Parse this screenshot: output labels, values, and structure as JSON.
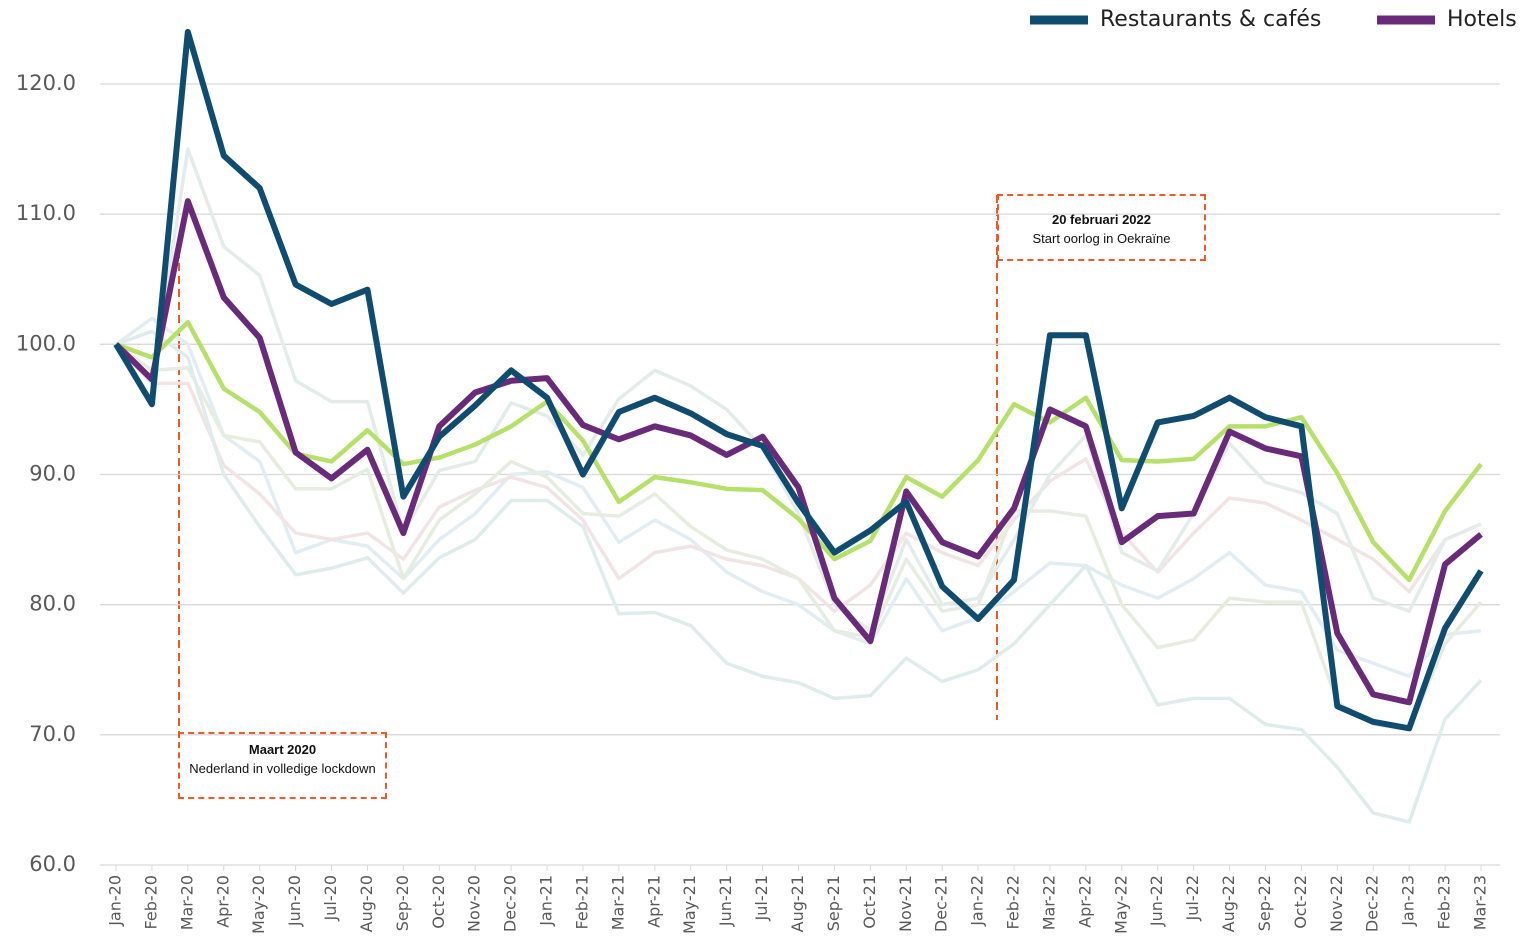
{
  "chart_data": {
    "type": "line",
    "categories": [
      "Jan-20",
      "Feb-20",
      "Mar-20",
      "Apr-20",
      "May-20",
      "Jun-20",
      "Jul-20",
      "Aug-20",
      "Sep-20",
      "Oct-20",
      "Nov-20",
      "Dec-20",
      "Jan-21",
      "Feb-21",
      "Mar-21",
      "Apr-21",
      "May-21",
      "Jun-21",
      "Jul-21",
      "Aug-21",
      "Sep-21",
      "Oct-21",
      "Nov-21",
      "Dec-21",
      "Jan-22",
      "Feb-22",
      "Mar-22",
      "Apr-22",
      "May-22",
      "Jun-22",
      "Jul-22",
      "Aug-22",
      "Sep-22",
      "Oct-22",
      "Nov-22",
      "Dec-22",
      "Jan-23",
      "Feb-23",
      "Mar-23"
    ],
    "series": [
      {
        "name": "Restaurants & cafés",
        "color": "#0f4c70",
        "values": [
          100,
          95.4,
          124.0,
          114.5,
          112.0,
          104.6,
          103.1,
          104.2,
          88.3,
          92.9,
          95.3,
          98.0,
          95.9,
          90.0,
          94.8,
          95.9,
          94.7,
          93.1,
          92.2,
          87.8,
          84.0,
          85.7,
          87.9,
          81.4,
          78.9,
          81.9,
          100.7,
          100.7,
          87.4,
          94.0,
          94.5,
          95.9,
          94.4,
          93.7,
          72.2,
          71.0,
          70.5,
          78.2,
          82.6
        ]
      },
      {
        "name": "Hotels",
        "color": "#6a2a7a",
        "values": [
          100,
          97.3,
          111.0,
          103.6,
          100.5,
          91.7,
          89.7,
          91.9,
          85.5,
          93.7,
          96.3,
          97.2,
          97.4,
          93.8,
          92.7,
          93.7,
          93.0,
          91.5,
          92.9,
          89.0,
          80.5,
          77.2,
          88.7,
          84.8,
          83.7,
          87.4,
          95.0,
          93.7,
          84.8,
          86.8,
          87.0,
          93.3,
          92.0,
          91.4,
          77.8,
          73.1,
          72.5,
          83.1,
          85.4
        ]
      },
      {
        "color": "#b5e06a",
        "values": [
          100,
          99.0,
          101.7,
          96.6,
          94.8,
          91.6,
          91.0,
          93.4,
          90.8,
          91.3,
          92.3,
          93.7,
          95.6,
          92.6,
          87.9,
          89.8,
          89.4,
          88.9,
          88.8,
          86.6,
          83.5,
          84.9,
          89.8,
          88.3,
          91.1,
          95.4,
          94.0,
          95.9,
          91.1,
          91.0,
          91.2,
          93.7,
          93.7,
          94.4,
          90.1,
          84.8,
          81.9,
          87.2,
          90.8
        ]
      },
      {
        "color": "#e0ecec",
        "values": [
          100,
          101,
          99,
          90,
          86,
          82.3,
          82.8,
          83.6,
          80.9,
          83.6,
          85.0,
          88.0,
          88.0,
          86.0,
          79.3,
          79.4,
          78.4,
          75.5,
          74.5,
          74.0,
          72.8,
          73.0,
          75.9,
          74.1,
          75.0,
          77.0,
          80.0,
          83.0,
          77.5,
          72.3,
          72.8,
          72.8,
          70.8,
          70.4,
          67.5,
          64.0,
          63.3,
          71.2,
          74.2
        ]
      },
      {
        "color": "#e4ecea",
        "values": [
          100,
          97,
          115,
          107.5,
          105.3,
          97.2,
          95.6,
          95.6,
          85.6,
          90.3,
          91.0,
          95.5,
          94.5,
          91.5,
          95.8,
          98.0,
          96.8,
          95.0,
          92.0,
          87.0,
          80.0,
          78.0,
          85.0,
          80.0,
          80.5,
          85.0,
          90.0,
          93.0,
          84.0,
          82.6,
          87.0,
          92.4,
          89.4,
          88.6,
          87.0,
          80.5,
          79.5,
          85.0,
          86.2
        ]
      },
      {
        "color": "#e6ede0",
        "values": [
          100,
          98,
          98.2,
          93,
          92.5,
          88.9,
          88.9,
          90.4,
          82.0,
          86.5,
          88.5,
          91.0,
          89.8,
          87.0,
          86.8,
          88.5,
          86.0,
          84.2,
          83.5,
          82.0,
          78.0,
          77.5,
          83.5,
          79.5,
          80.0,
          87.2,
          87.2,
          86.8,
          80.0,
          76.7,
          77.3,
          80.5,
          80.2,
          80.2,
          72.5,
          70.8,
          70.4,
          77.0,
          80.2
        ]
      },
      {
        "color": "#f2e4e4",
        "values": [
          100,
          97,
          97,
          90.7,
          88.5,
          85.5,
          85,
          85.5,
          83.5,
          87.5,
          88.8,
          89.8,
          89.0,
          86.5,
          82.0,
          84.0,
          84.5,
          83.5,
          83.0,
          82.0,
          79.5,
          81.5,
          85.5,
          84.0,
          83.0,
          86.5,
          89.5,
          91.2,
          85.5,
          82.5,
          85.5,
          88.2,
          87.8,
          86.5,
          85.0,
          83.5,
          81.0,
          85.0,
          86.2
        ]
      },
      {
        "color": "#e2edf3",
        "values": [
          100,
          102,
          100,
          93,
          91,
          84,
          85,
          84.5,
          82,
          85,
          87,
          90,
          90.2,
          89,
          84.8,
          86.5,
          85,
          82.5,
          81,
          80,
          78,
          77,
          82,
          78,
          79,
          81,
          83.2,
          83,
          81.5,
          80.5,
          82,
          84,
          81.5,
          81,
          76.5,
          75.5,
          74.5,
          77.7,
          78
        ]
      }
    ],
    "ylim": [
      60,
      120
    ],
    "yticks": [
      {
        "value": 60,
        "label": "60.0"
      },
      {
        "value": 70,
        "label": "70.0"
      },
      {
        "value": 80,
        "label": "80.0"
      },
      {
        "value": 90,
        "label": "90.0"
      },
      {
        "value": 100,
        "label": "100.0"
      },
      {
        "value": 110,
        "label": "110.0"
      },
      {
        "value": 120,
        "label": "120.0"
      }
    ],
    "grid": true,
    "legend": "top-right",
    "annotations": [
      {
        "title": "Maart 2020",
        "text": "Nederland in volledige lockdown"
      },
      {
        "title": "20 februari 2022",
        "text": "Start oorlog in Oekraïne"
      }
    ]
  }
}
